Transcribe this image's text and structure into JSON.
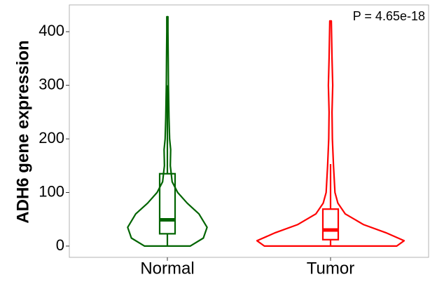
{
  "chart_data": {
    "type": "violin",
    "y_label": "ADH6 gene expression",
    "annotation": "P = 4.65e-18",
    "categories": [
      "Normal",
      "Tumor"
    ],
    "ylim": [
      -21,
      450
    ],
    "yticks": [
      0,
      100,
      200,
      300,
      400
    ],
    "grid": false,
    "series": [
      {
        "name": "Normal",
        "color": "#006400",
        "box": {
          "whisker_low": 0,
          "q1": 23,
          "median": 49,
          "q3": 135,
          "whisker_high": 300
        },
        "violin_y": [
          0,
          15,
          35,
          60,
          80,
          100,
          120,
          150,
          180,
          200,
          240,
          300,
          350,
          400,
          428
        ],
        "violin_width": [
          0.31,
          0.49,
          0.54,
          0.43,
          0.27,
          0.14,
          0.065,
          0.04,
          0.045,
          0.03,
          0.022,
          0.014,
          0.011,
          0.008,
          0.008
        ]
      },
      {
        "name": "Tumor",
        "color": "#ff0000",
        "box": {
          "whisker_low": 0,
          "q1": 12,
          "median": 30,
          "q3": 69,
          "whisker_high": 153
        },
        "violin_y": [
          0,
          10,
          25,
          40,
          60,
          80,
          100,
          150,
          200,
          250,
          300,
          350,
          420
        ],
        "violin_width": [
          0.9,
          1.0,
          0.75,
          0.45,
          0.2,
          0.1,
          0.06,
          0.04,
          0.025,
          0.02,
          0.03,
          0.02,
          0.01
        ]
      }
    ]
  }
}
